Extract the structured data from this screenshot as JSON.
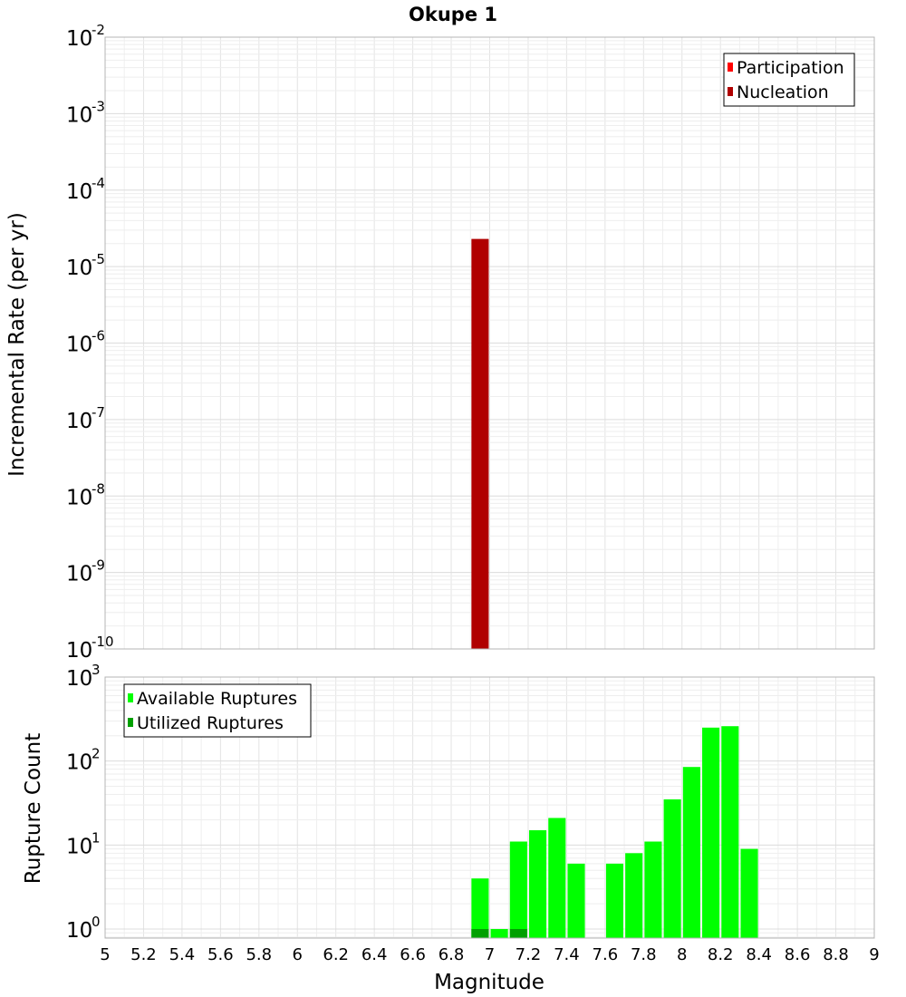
{
  "chart_data": [
    {
      "type": "bar",
      "title": "Okupe 1",
      "xlabel": "",
      "ylabel": "Incremental Rate (per yr)",
      "xlim": [
        5,
        9
      ],
      "ylim": [
        1e-10,
        0.01
      ],
      "yscale": "log",
      "y_tick_exponents": [
        "-10",
        "-9",
        "-8",
        "-7",
        "-6",
        "-5",
        "-4",
        "-3",
        "-2"
      ],
      "grid": true,
      "legend_position": "top-right",
      "series": [
        {
          "name": "Participation",
          "color": "#ff0000",
          "x": [],
          "values": []
        },
        {
          "name": "Nucleation",
          "color": "#b00000",
          "x": [
            6.95
          ],
          "values": [
            2.3e-05
          ]
        }
      ],
      "bar_width": 0.09
    },
    {
      "type": "bar",
      "title": "",
      "xlabel": "Magnitude",
      "ylabel": "Rupture Count",
      "xlim": [
        5,
        9
      ],
      "ylim": [
        0.78,
        1000
      ],
      "yscale": "log",
      "y_tick_exponents": [
        "0",
        "1",
        "2",
        "3"
      ],
      "x_ticks": [
        "5",
        "5.2",
        "5.4",
        "5.6",
        "5.8",
        "6",
        "6.2",
        "6.4",
        "6.6",
        "6.8",
        "7",
        "7.2",
        "7.4",
        "7.6",
        "7.8",
        "8",
        "8.2",
        "8.4",
        "8.6",
        "8.8",
        "9"
      ],
      "grid": true,
      "legend_position": "top-left",
      "series": [
        {
          "name": "Available Ruptures",
          "color": "#00ff00",
          "x": [
            6.95,
            7.05,
            7.15,
            7.25,
            7.35,
            7.45,
            7.65,
            7.75,
            7.85,
            7.95,
            8.05,
            8.15,
            8.25,
            8.35
          ],
          "values": [
            4,
            1,
            11,
            15,
            21,
            6,
            6,
            8,
            11,
            35,
            85,
            250,
            260,
            9
          ]
        },
        {
          "name": "Utilized Ruptures",
          "color": "#00a000",
          "x": [
            6.95,
            7.15
          ],
          "values": [
            1,
            1
          ]
        }
      ],
      "bar_width": 0.09
    }
  ]
}
